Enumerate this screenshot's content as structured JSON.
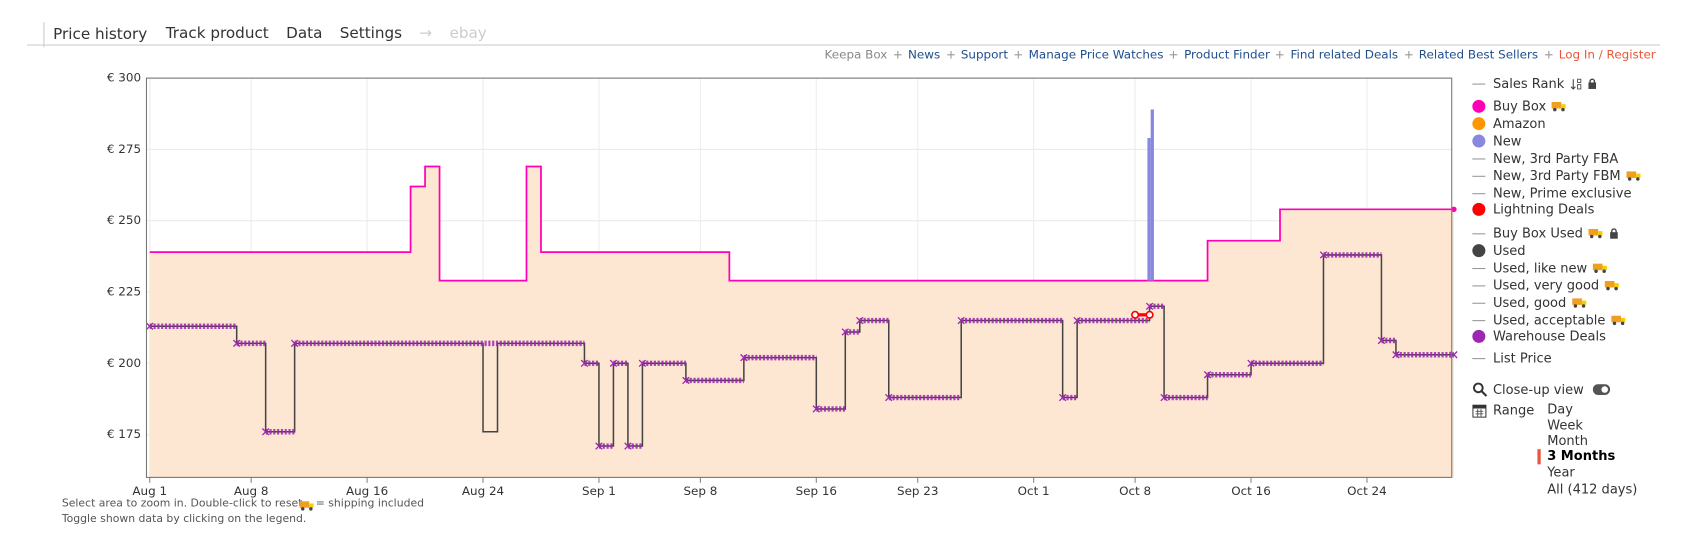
{
  "tabs": [
    {
      "label": "Price history",
      "active": true
    },
    {
      "label": "Track product"
    },
    {
      "label": "Data"
    },
    {
      "label": "Settings"
    },
    {
      "label": "→",
      "muted": true
    },
    {
      "label": "ebay",
      "muted": true
    }
  ],
  "links": [
    {
      "label": "Keepa Box",
      "color": "#888888"
    },
    {
      "label": "News"
    },
    {
      "label": "Support"
    },
    {
      "label": "Manage Price Watches"
    },
    {
      "label": "Product Finder"
    },
    {
      "label": "Find related Deals"
    },
    {
      "label": "Related Best Sellers"
    },
    {
      "label": "Log In / Register",
      "color": "#e8553a"
    }
  ],
  "chart_data": {
    "type": "line",
    "xlim": [
      "Aug 1",
      "Oct 30"
    ],
    "xticks": [
      "Aug 1",
      "Aug 8",
      "Aug 16",
      "Aug 24",
      "Sep 1",
      "Sep 8",
      "Sep 16",
      "Sep 23",
      "Oct 1",
      "Oct 8",
      "Oct 16",
      "Oct 24"
    ],
    "ylim": [
      160,
      300
    ],
    "yticks": [
      {
        "value": 175,
        "label": "€ 175"
      },
      {
        "value": 200,
        "label": "€ 200"
      },
      {
        "value": 225,
        "label": "€ 225"
      },
      {
        "value": 250,
        "label": "€ 250"
      },
      {
        "value": 275,
        "label": "€ 275"
      },
      {
        "value": 300,
        "label": "€ 300"
      }
    ],
    "grid": true,
    "series": [
      {
        "name": "Buy Box",
        "style": "step-area",
        "color": "#ff00b4",
        "area_color": "#fde6d2",
        "x": [
          "Aug 1",
          "Aug 19",
          "Aug 20",
          "Aug 21",
          "Aug 27",
          "Aug 28",
          "Sep 10",
          "Oct 13",
          "Oct 18",
          "Oct 30"
        ],
        "values": [
          239,
          262,
          269,
          229,
          269,
          239,
          229,
          243,
          254,
          254
        ]
      },
      {
        "name": "Used",
        "style": "step",
        "color": "#444444",
        "x": [
          "Aug 1",
          "Aug 7",
          "Aug 9",
          "Aug 11",
          "Aug 24",
          "Aug 25",
          "Aug 31",
          "Sep 1",
          "Sep 2",
          "Sep 3",
          "Sep 4",
          "Sep 7",
          "Sep 11",
          "Sep 16",
          "Sep 18",
          "Sep 19",
          "Sep 21",
          "Sep 26",
          "Oct 3",
          "Oct 4",
          "Oct 9",
          "Oct 10",
          "Oct 13",
          "Oct 16",
          "Oct 21",
          "Oct 25",
          "Oct 26",
          "Oct 30"
        ],
        "values": [
          213,
          207,
          176,
          207,
          176,
          207,
          200,
          171,
          200,
          171,
          200,
          194,
          202,
          184,
          211,
          215,
          188,
          215,
          188,
          215,
          220,
          188,
          196,
          200,
          238,
          208,
          203,
          203
        ]
      },
      {
        "name": "Warehouse Deals",
        "style": "markers",
        "color": "#9c27b0",
        "x": [
          "Aug 1",
          "Aug 7",
          "Aug 9",
          "Aug 11",
          "Aug 31",
          "Sep 1",
          "Sep 2",
          "Sep 3",
          "Sep 4",
          "Sep 7",
          "Sep 11",
          "Sep 16",
          "Sep 18",
          "Sep 19",
          "Sep 21",
          "Sep 26",
          "Oct 3",
          "Oct 4",
          "Oct 9",
          "Oct 10",
          "Oct 13",
          "Oct 16",
          "Oct 21",
          "Oct 25",
          "Oct 26",
          "Oct 30"
        ],
        "values": [
          213,
          207,
          176,
          207,
          200,
          171,
          200,
          171,
          200,
          194,
          202,
          184,
          211,
          215,
          188,
          215,
          188,
          215,
          220,
          188,
          196,
          200,
          238,
          208,
          203,
          203
        ]
      },
      {
        "name": "New",
        "style": "spike",
        "color": "#8888e0",
        "x": [
          "Oct 9",
          "Oct 9"
        ],
        "values": [
          279,
          289
        ]
      },
      {
        "name": "Lightning Deals",
        "style": "line",
        "color": "#ff0000",
        "x": [
          "Oct 8",
          "Oct 9"
        ],
        "values": [
          217,
          217
        ]
      }
    ]
  },
  "legend": [
    {
      "label": "Sales Rank",
      "style": "line",
      "sort": true,
      "lock": true
    },
    {
      "label": "Buy Box",
      "style": "dot",
      "color": "#ff00b4",
      "truck": true
    },
    {
      "label": "Amazon",
      "style": "dot",
      "color": "#ff9800"
    },
    {
      "label": "New",
      "style": "dot",
      "color": "#8888e0"
    },
    {
      "label": "New, 3rd Party FBA",
      "style": "line"
    },
    {
      "label": "New, 3rd Party FBM",
      "style": "line",
      "truck": true
    },
    {
      "label": "New, Prime exclusive",
      "style": "line"
    },
    {
      "label": "Lightning Deals",
      "style": "dot",
      "color": "#ff0000"
    },
    {
      "label": "Buy Box Used",
      "style": "line",
      "truck": true,
      "lock": true
    },
    {
      "label": "Used",
      "style": "dot",
      "color": "#444444"
    },
    {
      "label": "Used, like new",
      "style": "line",
      "truck": true
    },
    {
      "label": "Used, very good",
      "style": "line",
      "truck": true
    },
    {
      "label": "Used, good",
      "style": "line",
      "truck": true
    },
    {
      "label": "Used, acceptable",
      "style": "line",
      "truck": true
    },
    {
      "label": "Warehouse Deals",
      "style": "dot",
      "color": "#9c27b0"
    },
    {
      "label": "List Price",
      "style": "line"
    }
  ],
  "closeup": {
    "label": "Close-up view",
    "on": true
  },
  "range": {
    "label": "Range",
    "options": [
      "Day",
      "Week",
      "Month",
      "3 Months",
      "Year",
      "All (412 days)"
    ],
    "selected": 3
  },
  "notes": {
    "zoom": "Select area to zoom in. Double-click to reset.",
    "shipping": "= shipping included",
    "toggle": "Toggle shown data by clicking on the legend."
  }
}
